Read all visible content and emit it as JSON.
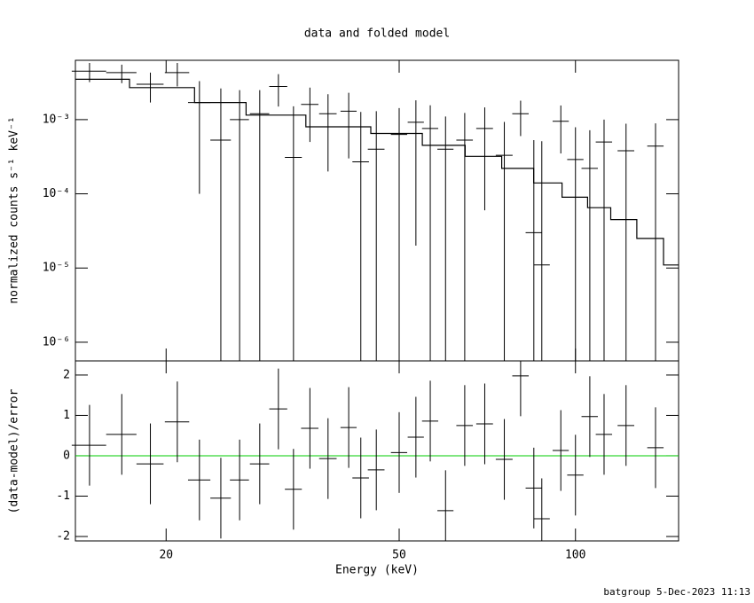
{
  "chart_data": [
    {
      "type": "errorbar",
      "title": "data and folded model",
      "ylabel": "normalized counts s⁻¹ keV⁻¹",
      "xlog": true,
      "ylog": true,
      "ylim": [
        5.6e-07,
        0.0063
      ],
      "yticks": [
        {
          "value": 0.001,
          "label": "10⁻³"
        },
        {
          "value": 0.0001,
          "label": "10⁻⁴"
        },
        {
          "value": 1e-05,
          "label": "10⁻⁵"
        },
        {
          "value": 1e-06,
          "label": "10⁻⁶"
        }
      ],
      "data": {
        "color": "#000000",
        "x": [
          14.8,
          16.8,
          18.8,
          20.9,
          22.8,
          24.8,
          26.7,
          28.9,
          31.1,
          33.0,
          35.2,
          37.8,
          41.0,
          43.0,
          45.7,
          50.0,
          53.4,
          56.5,
          60.0,
          64.7,
          70.0,
          75.6,
          80.6,
          84.9,
          87.6,
          94.4,
          100.0,
          105.8,
          111.9,
          122.0,
          137.0
        ],
        "xerr": [
          1.0,
          1.0,
          1.0,
          1.0,
          1.0,
          1.0,
          1.0,
          1.1,
          1.1,
          1.1,
          1.2,
          1.3,
          1.3,
          1.4,
          1.5,
          1.6,
          1.7,
          1.8,
          1.9,
          2.1,
          2.3,
          2.5,
          2.6,
          2.7,
          2.8,
          3.0,
          3.2,
          3.4,
          3.6,
          4.0,
          4.4
        ],
        "values": [
          0.0045,
          0.0043,
          0.003,
          0.0043,
          0.0017,
          0.00053,
          0.001,
          0.0012,
          0.0028,
          0.00031,
          0.0016,
          0.0012,
          0.0013,
          0.00027,
          0.0004,
          0.00063,
          0.00092,
          0.00076,
          0.0004,
          0.00053,
          0.00076,
          0.00033,
          0.0012,
          3e-05,
          1.1e-05,
          0.00095,
          0.00029,
          0.00022,
          0.0005,
          0.00038,
          0.00044
        ],
        "yerr": [
          0.0013,
          0.0012,
          0.0013,
          0.0015,
          0.0016,
          0.0021,
          0.0015,
          0.0013,
          0.0013,
          0.0012,
          0.0011,
          0.001,
          0.001,
          0.001,
          0.0009,
          0.0008,
          0.0009,
          0.0008,
          0.0007,
          0.0007,
          0.0007,
          0.0006,
          0.0006,
          0.0005,
          0.0005,
          0.0006,
          0.0005,
          0.0005,
          0.0005,
          0.0005,
          0.00045
        ]
      },
      "model": {
        "color": "#000000",
        "x": [
          14,
          15,
          20,
          25,
          30,
          40,
          50,
          60,
          70,
          80,
          90,
          100,
          110,
          120,
          135,
          148,
          150
        ],
        "values": [
          0.0035,
          0.0035,
          0.0027,
          0.0017,
          0.00115,
          0.0008,
          0.00065,
          0.00045,
          0.00032,
          0.00022,
          0.00014,
          9e-05,
          6.5e-05,
          4.5e-05,
          2.5e-05,
          1.1e-05,
          1.1e-05
        ]
      }
    },
    {
      "type": "errorbar",
      "ylabel": "(data-model)/error",
      "xlabel": "Energy (keV)",
      "xlog": true,
      "xlim": [
        14,
        150
      ],
      "xticks": [
        20,
        50,
        100
      ],
      "ylim": [
        -2.11,
        2.35
      ],
      "yticks": [
        -2,
        -1,
        0,
        1,
        2
      ],
      "reference_line": {
        "value": 0,
        "color": "#00cc00"
      },
      "data": {
        "color": "#000000",
        "values": [
          0.26,
          0.53,
          -0.2,
          0.84,
          -0.6,
          -1.05,
          -0.6,
          -0.2,
          1.16,
          -0.83,
          0.68,
          -0.07,
          0.7,
          -0.55,
          -0.35,
          0.08,
          0.46,
          0.86,
          -1.36,
          0.75,
          0.79,
          -0.09,
          1.98,
          -0.8,
          -1.56,
          0.13,
          -0.48,
          0.97,
          0.53,
          0.75,
          0.2
        ],
        "yerr": [
          1,
          1,
          1,
          1,
          1,
          1,
          1,
          1,
          1,
          1,
          1,
          1,
          1,
          1,
          1,
          1,
          1,
          1,
          1,
          1,
          1,
          1,
          1,
          1,
          1,
          1,
          1,
          1,
          1,
          1,
          1
        ]
      }
    }
  ],
  "footer": "batgroup  5-Dec-2023 11:13"
}
